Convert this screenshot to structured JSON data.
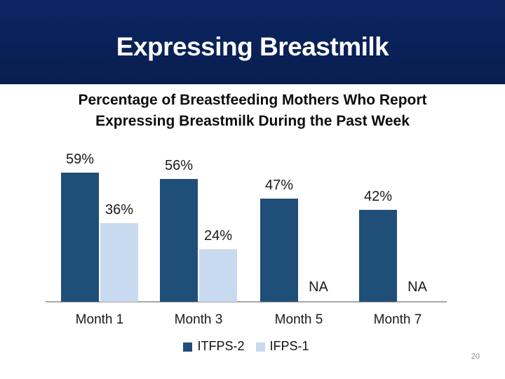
{
  "slide": {
    "title": "Expressing Breastmilk",
    "page_number": "20"
  },
  "colors": {
    "header_bg": "#0A2158",
    "title_text": "#FFFFFF",
    "axis": "#A6A6A6",
    "series_dark": "#1F4E79",
    "series_light": "#C8DAEF",
    "label_text": "#1A1A1A",
    "page_number_text": "#8F8F8F"
  },
  "chart_data": {
    "type": "bar",
    "title": "Percentage of Breastfeeding Mothers Who Report Expressing Breastmilk During the Past Week",
    "title_lines": [
      "Percentage of Breastfeeding Mothers Who Report",
      "Expressing Breastmilk During the Past Week"
    ],
    "categories": [
      "Month 1",
      "Month 3",
      "Month 5",
      "Month 7"
    ],
    "series": [
      {
        "name": "ITFPS-2",
        "color": "#1F4E79",
        "values": [
          59,
          56,
          47,
          42
        ],
        "labels": [
          "59%",
          "56%",
          "47%",
          "42%"
        ]
      },
      {
        "name": "IFPS-1",
        "color": "#C8DAEF",
        "values": [
          36,
          24,
          null,
          null
        ],
        "labels": [
          "36%",
          "24%",
          "NA",
          "NA"
        ]
      }
    ],
    "na_label": "NA",
    "value_suffix": "%",
    "ylim": [
      0,
      74
    ],
    "grid": false,
    "y_axis_visible": false,
    "legend_position": "bottom",
    "xlabel": "",
    "ylabel": ""
  }
}
